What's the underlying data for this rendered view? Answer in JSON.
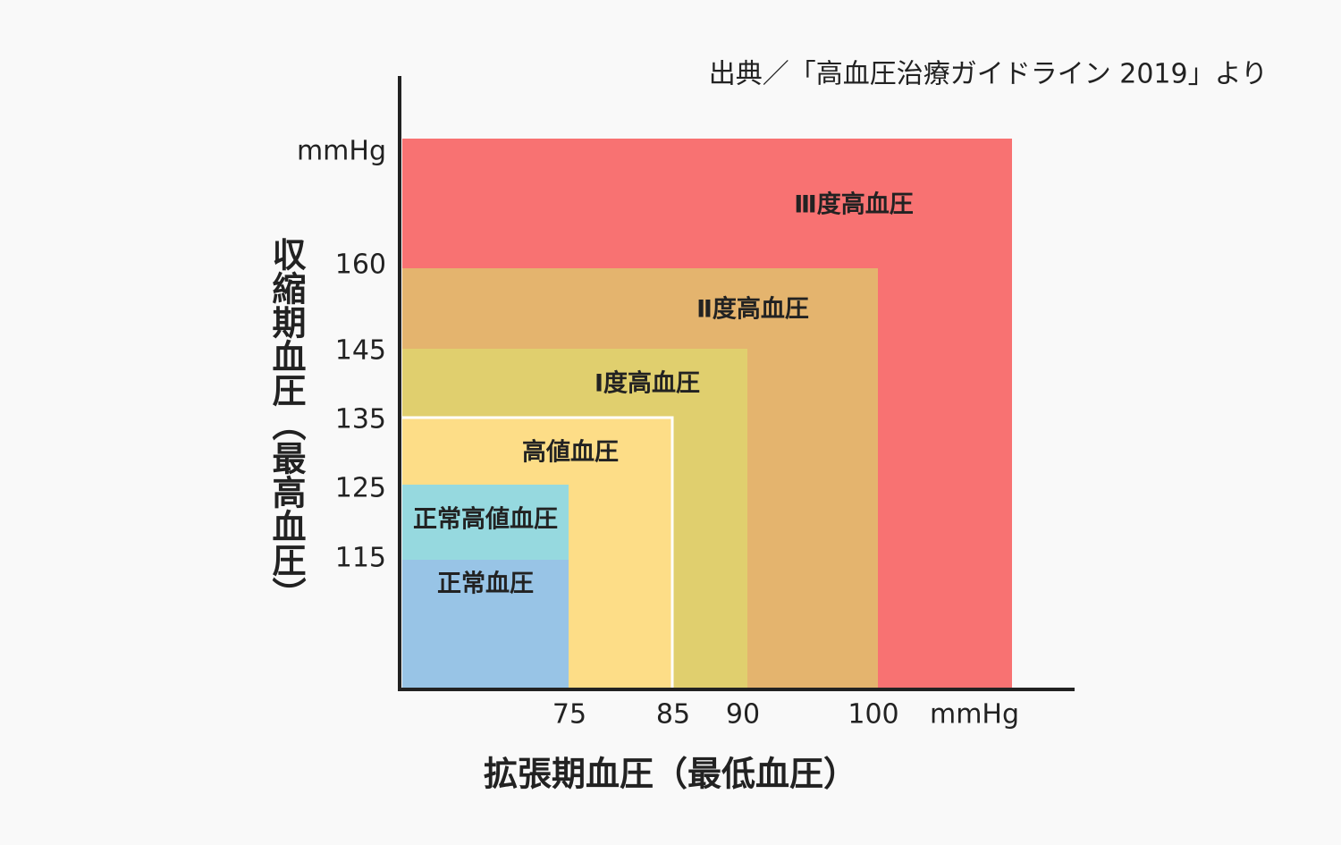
{
  "source": "出典／「高血圧治療ガイドライン 2019」より",
  "y_axis": {
    "title": "収縮期血圧（最高血圧）",
    "unit": "mmHg",
    "ticks": [
      160,
      145,
      135,
      125,
      115
    ]
  },
  "x_axis": {
    "title": "拡張期血圧（最低血圧）",
    "unit": "mmHg",
    "ticks": [
      75,
      85,
      90,
      100
    ]
  },
  "regions": [
    {
      "label": "Ⅲ度高血圧",
      "color": "#f87272"
    },
    {
      "label": "Ⅱ度高血圧",
      "color": "#e4b46e"
    },
    {
      "label": "Ⅰ度高血圧",
      "color": "#e0cf6e"
    },
    {
      "label": "高値血圧",
      "color": "#fddd87"
    },
    {
      "label": "正常高値血圧",
      "color": "#96d9df"
    },
    {
      "label": "正常血圧",
      "color": "#98c4e6"
    }
  ]
}
